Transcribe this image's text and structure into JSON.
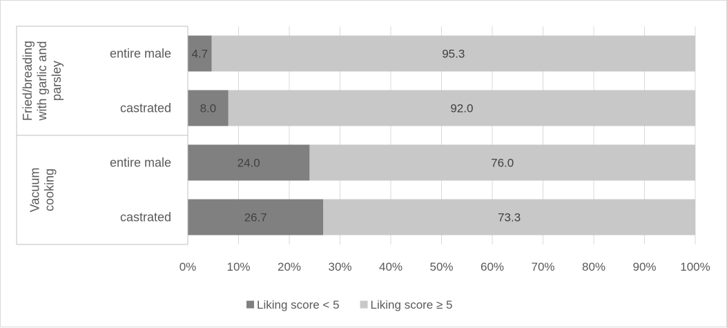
{
  "chart_data": {
    "type": "bar",
    "orientation": "horizontal",
    "stacked": "percent",
    "groups": [
      {
        "label": "Fried/breading with garlic and parsley",
        "lines": [
          "Fried/breading",
          "with garlic and",
          "parsley"
        ]
      },
      {
        "label": "Vacuum cooking",
        "lines": [
          "Vacuum",
          "cooking"
        ]
      }
    ],
    "categories": [
      {
        "group": 0,
        "label": "entire male"
      },
      {
        "group": 0,
        "label": "castrated"
      },
      {
        "group": 1,
        "label": "entire male"
      },
      {
        "group": 1,
        "label": "castrated"
      }
    ],
    "series": [
      {
        "name": "Liking score < 5",
        "color": "#808080",
        "values": [
          4.7,
          8.0,
          24.0,
          26.7
        ],
        "value_labels": [
          "4.7",
          "8.0",
          "24.0",
          "26.7"
        ]
      },
      {
        "name": "Liking score ≥ 5",
        "color": "#c8c8c8",
        "values": [
          95.3,
          92.0,
          76.0,
          73.3
        ],
        "value_labels": [
          "95.3",
          "92.0",
          "76.0",
          "73.3"
        ]
      }
    ],
    "xlim": [
      0,
      100
    ],
    "x_ticks": [
      "0%",
      "10%",
      "20%",
      "30%",
      "40%",
      "50%",
      "60%",
      "70%",
      "80%",
      "90%",
      "100%"
    ],
    "grid": true,
    "legend_position": "bottom"
  }
}
